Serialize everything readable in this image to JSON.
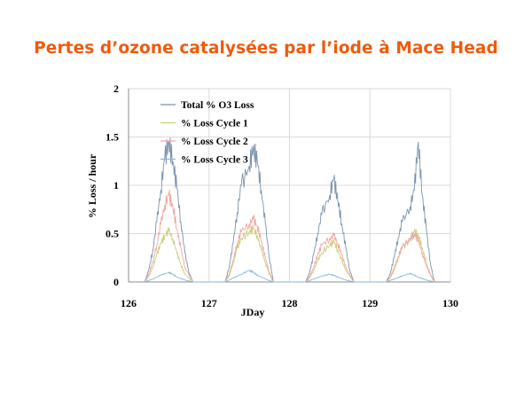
{
  "slide": {
    "title": "Pertes d’ozone catalysées par l’iode à Mace Head"
  },
  "chart_data": {
    "type": "line",
    "xlabel": "JDay",
    "ylabel": "% Loss / hour",
    "xlim": [
      126,
      130
    ],
    "ylim": [
      0,
      2
    ],
    "x_ticks": [
      "126",
      "127",
      "128",
      "129",
      "130"
    ],
    "y_ticks": [
      "0",
      "0.5",
      "1",
      "1.5",
      "2"
    ],
    "grid": true,
    "legend_position": "top-left",
    "series": [
      {
        "name": "Total % O3 Loss",
        "color": "#7b93ad",
        "points": [
          [
            126.2,
            0
          ],
          [
            126.25,
            0.12
          ],
          [
            126.3,
            0.32
          ],
          [
            126.35,
            0.62
          ],
          [
            126.4,
            0.95
          ],
          [
            126.45,
            1.28
          ],
          [
            126.5,
            1.45
          ],
          [
            126.55,
            1.25
          ],
          [
            126.6,
            0.98
          ],
          [
            126.65,
            0.62
          ],
          [
            126.7,
            0.3
          ],
          [
            126.75,
            0.1
          ],
          [
            126.8,
            0
          ],
          [
            127.2,
            0
          ],
          [
            127.25,
            0.15
          ],
          [
            127.3,
            0.4
          ],
          [
            127.35,
            0.72
          ],
          [
            127.4,
            1.0
          ],
          [
            127.5,
            1.2
          ],
          [
            127.55,
            1.38
          ],
          [
            127.6,
            1.25
          ],
          [
            127.65,
            0.95
          ],
          [
            127.7,
            0.6
          ],
          [
            127.75,
            0.25
          ],
          [
            127.8,
            0
          ],
          [
            128.2,
            0
          ],
          [
            128.25,
            0.1
          ],
          [
            128.3,
            0.28
          ],
          [
            128.35,
            0.5
          ],
          [
            128.4,
            0.7
          ],
          [
            128.5,
            0.9
          ],
          [
            128.55,
            1.07
          ],
          [
            128.6,
            0.85
          ],
          [
            128.65,
            0.6
          ],
          [
            128.7,
            0.35
          ],
          [
            128.75,
            0.12
          ],
          [
            128.8,
            0
          ],
          [
            129.2,
            0
          ],
          [
            129.25,
            0.08
          ],
          [
            129.3,
            0.25
          ],
          [
            129.35,
            0.45
          ],
          [
            129.4,
            0.62
          ],
          [
            129.5,
            0.78
          ],
          [
            129.55,
            0.95
          ],
          [
            129.6,
            1.45
          ],
          [
            129.65,
            0.9
          ],
          [
            129.7,
            0.55
          ],
          [
            129.75,
            0.2
          ],
          [
            129.8,
            0
          ]
        ]
      },
      {
        "name": "% Loss Cycle 1",
        "color": "#c9cf7a",
        "points": [
          [
            126.2,
            0
          ],
          [
            126.25,
            0.05
          ],
          [
            126.3,
            0.15
          ],
          [
            126.35,
            0.28
          ],
          [
            126.4,
            0.4
          ],
          [
            126.45,
            0.48
          ],
          [
            126.5,
            0.53
          ],
          [
            126.55,
            0.45
          ],
          [
            126.6,
            0.3
          ],
          [
            126.65,
            0.18
          ],
          [
            126.7,
            0.08
          ],
          [
            126.8,
            0
          ],
          [
            127.2,
            0
          ],
          [
            127.25,
            0.06
          ],
          [
            127.3,
            0.2
          ],
          [
            127.35,
            0.35
          ],
          [
            127.4,
            0.45
          ],
          [
            127.5,
            0.52
          ],
          [
            127.55,
            0.55
          ],
          [
            127.6,
            0.48
          ],
          [
            127.65,
            0.33
          ],
          [
            127.7,
            0.2
          ],
          [
            127.75,
            0.08
          ],
          [
            127.8,
            0
          ],
          [
            128.2,
            0
          ],
          [
            128.25,
            0.04
          ],
          [
            128.3,
            0.12
          ],
          [
            128.35,
            0.22
          ],
          [
            128.4,
            0.3
          ],
          [
            128.5,
            0.38
          ],
          [
            128.55,
            0.42
          ],
          [
            128.6,
            0.33
          ],
          [
            128.65,
            0.22
          ],
          [
            128.7,
            0.12
          ],
          [
            128.8,
            0
          ],
          [
            129.2,
            0
          ],
          [
            129.25,
            0.04
          ],
          [
            129.3,
            0.12
          ],
          [
            129.35,
            0.25
          ],
          [
            129.4,
            0.35
          ],
          [
            129.5,
            0.45
          ],
          [
            129.55,
            0.52
          ],
          [
            129.6,
            0.48
          ],
          [
            129.65,
            0.35
          ],
          [
            129.7,
            0.2
          ],
          [
            129.75,
            0.08
          ],
          [
            129.8,
            0
          ]
        ]
      },
      {
        "name": "% Loss Cycle 2",
        "color": "#f2a7a0",
        "points": [
          [
            126.2,
            0
          ],
          [
            126.25,
            0.08
          ],
          [
            126.3,
            0.2
          ],
          [
            126.35,
            0.38
          ],
          [
            126.4,
            0.6
          ],
          [
            126.45,
            0.8
          ],
          [
            126.5,
            0.9
          ],
          [
            126.55,
            0.78
          ],
          [
            126.6,
            0.55
          ],
          [
            126.65,
            0.35
          ],
          [
            126.7,
            0.15
          ],
          [
            126.8,
            0
          ],
          [
            127.2,
            0
          ],
          [
            127.25,
            0.08
          ],
          [
            127.3,
            0.22
          ],
          [
            127.35,
            0.4
          ],
          [
            127.4,
            0.52
          ],
          [
            127.5,
            0.6
          ],
          [
            127.55,
            0.65
          ],
          [
            127.6,
            0.58
          ],
          [
            127.65,
            0.42
          ],
          [
            127.7,
            0.25
          ],
          [
            127.75,
            0.1
          ],
          [
            127.8,
            0
          ],
          [
            128.2,
            0
          ],
          [
            128.25,
            0.06
          ],
          [
            128.3,
            0.15
          ],
          [
            128.35,
            0.28
          ],
          [
            128.4,
            0.38
          ],
          [
            128.5,
            0.45
          ],
          [
            128.55,
            0.48
          ],
          [
            128.6,
            0.4
          ],
          [
            128.65,
            0.28
          ],
          [
            128.7,
            0.15
          ],
          [
            128.8,
            0
          ],
          [
            129.2,
            0
          ],
          [
            129.25,
            0.05
          ],
          [
            129.3,
            0.14
          ],
          [
            129.35,
            0.26
          ],
          [
            129.4,
            0.36
          ],
          [
            129.5,
            0.44
          ],
          [
            129.55,
            0.5
          ],
          [
            129.6,
            0.42
          ],
          [
            129.65,
            0.3
          ],
          [
            129.7,
            0.16
          ],
          [
            129.8,
            0
          ]
        ]
      },
      {
        "name": "% Loss Cycle 3",
        "color": "#86b6d8",
        "points": [
          [
            126.2,
            0
          ],
          [
            126.3,
            0.03
          ],
          [
            126.4,
            0.07
          ],
          [
            126.5,
            0.1
          ],
          [
            126.55,
            0.08
          ],
          [
            126.6,
            0.05
          ],
          [
            126.7,
            0.02
          ],
          [
            126.8,
            0
          ],
          [
            127.2,
            0
          ],
          [
            127.3,
            0.04
          ],
          [
            127.4,
            0.08
          ],
          [
            127.5,
            0.12
          ],
          [
            127.55,
            0.1
          ],
          [
            127.6,
            0.07
          ],
          [
            127.7,
            0.03
          ],
          [
            127.8,
            0
          ],
          [
            128.2,
            0
          ],
          [
            128.3,
            0.03
          ],
          [
            128.4,
            0.06
          ],
          [
            128.5,
            0.08
          ],
          [
            128.55,
            0.07
          ],
          [
            128.6,
            0.05
          ],
          [
            128.7,
            0.02
          ],
          [
            128.8,
            0
          ],
          [
            129.2,
            0
          ],
          [
            129.3,
            0.03
          ],
          [
            129.4,
            0.06
          ],
          [
            129.5,
            0.09
          ],
          [
            129.55,
            0.07
          ],
          [
            129.6,
            0.05
          ],
          [
            129.7,
            0.02
          ],
          [
            129.8,
            0
          ]
        ]
      }
    ]
  }
}
